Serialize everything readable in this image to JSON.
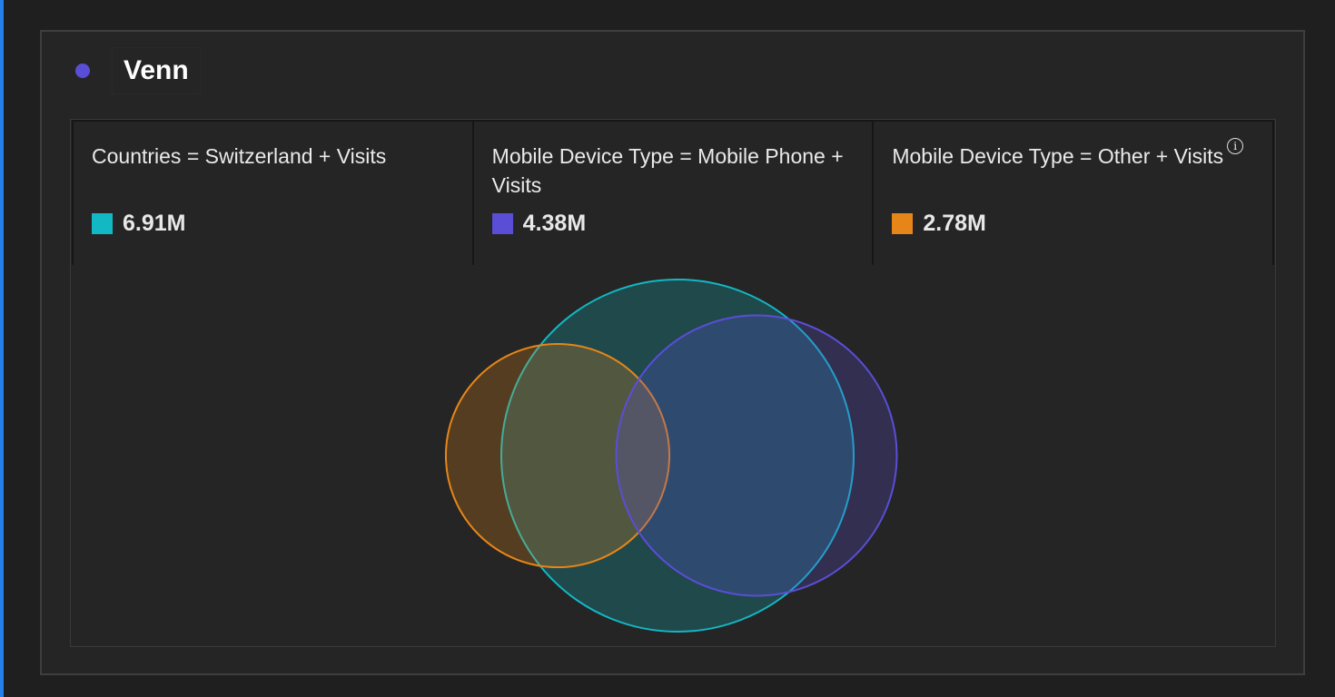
{
  "title": "Venn",
  "chart_data": {
    "type": "venn",
    "title": "Venn",
    "sets": [
      {
        "name": "Countries = Switzerland + Visits",
        "value": 6.91,
        "display": "6.91M",
        "color": "#12b8c4"
      },
      {
        "name": "Mobile Device Type = Mobile Phone + Visits",
        "value": 4.38,
        "display": "4.38M",
        "color": "#5a4ed6"
      },
      {
        "name": "Mobile Device Type = Other + Visits",
        "value": 2.78,
        "display": "2.78M",
        "color": "#e68619"
      }
    ]
  },
  "icons": {
    "info": "info-icon"
  }
}
